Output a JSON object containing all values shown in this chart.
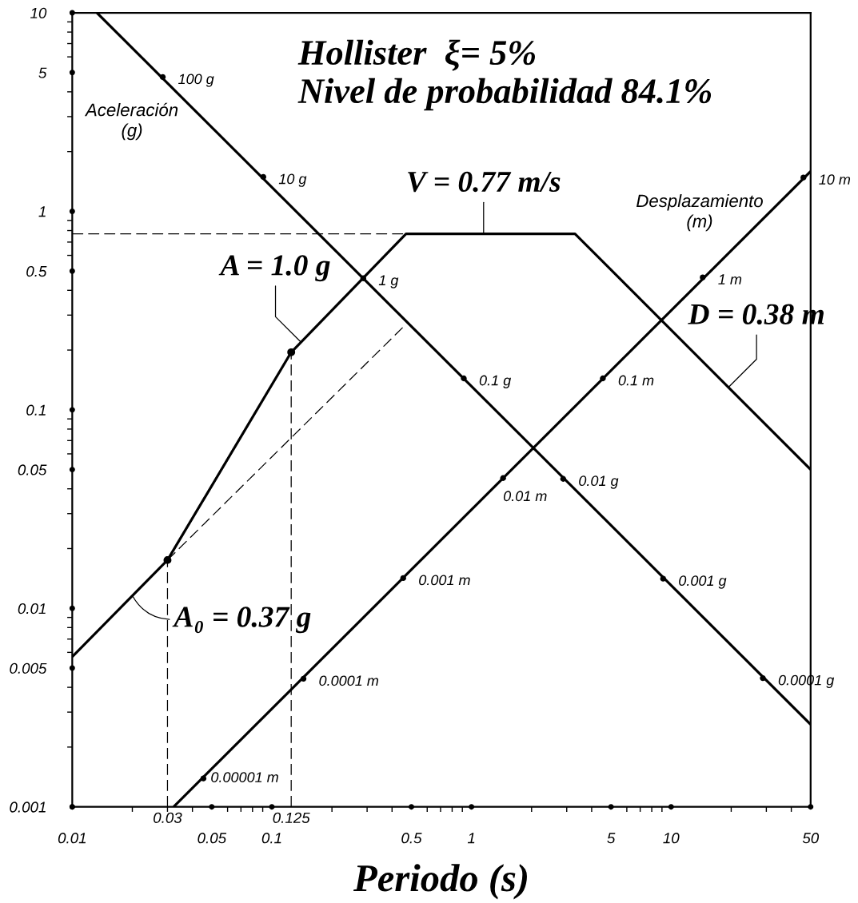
{
  "chart_data": {
    "type": "line",
    "title": "Hollister  ξ= 5%",
    "subtitle": "Nivel de probabilidad 84.1%",
    "xlabel": "Periodo (s)",
    "log": "xy",
    "xlim": [
      0.01,
      50
    ],
    "ylim": [
      0.001,
      10
    ],
    "xticks": [
      0.01,
      0.05,
      0.1,
      0.5,
      1,
      5,
      10,
      50
    ],
    "yticks": [
      0.001,
      0.005,
      0.01,
      0.05,
      0.1,
      0.5,
      1,
      5,
      10
    ],
    "series": [
      {
        "color": "#000000",
        "x": [
          0.01,
          0.03,
          0.125,
          0.47,
          3.3,
          50
        ],
        "values": [
          0.0057,
          0.0175,
          0.195,
          0.77,
          0.77,
          0.05
        ]
      },
      {
        "color": "#000000",
        "line_style": "dashed",
        "x": [
          0.01,
          0.47
        ],
        "values": [
          0.77,
          0.77
        ]
      },
      {
        "color": "#000000",
        "line_style": "dashed",
        "x": [
          0.03,
          0.47
        ],
        "values": [
          0.0175,
          0.27
        ]
      },
      {
        "color": "#000000",
        "line_style": "dashed",
        "x": [
          0.03,
          0.03
        ],
        "values": [
          0.001,
          0.0175
        ]
      },
      {
        "color": "#000000",
        "line_style": "dashed",
        "x": [
          0.125,
          0.125
        ],
        "values": [
          0.001,
          0.195
        ]
      },
      {
        "color": "#000000",
        "x": [
          0.0133,
          50
        ],
        "values": [
          10,
          0.0026
        ]
      },
      {
        "color": "#000000",
        "x": [
          0.0322,
          50
        ],
        "values": [
          0.001,
          1.59
        ]
      },
      {
        "type": "scatter",
        "color": "#000000",
        "marker": "circle",
        "x": [
          0.0284,
          0.0906,
          0.287,
          0.915,
          2.88,
          9.12,
          28.8
        ],
        "values": [
          4.75,
          1.49,
          0.46,
          0.144,
          0.0449,
          0.0141,
          0.00445
        ]
      },
      {
        "type": "scatter",
        "color": "#000000",
        "marker": "circle",
        "x": [
          46.0,
          14.4,
          4.55,
          1.44,
          0.455,
          0.144,
          0.0454
        ],
        "values": [
          1.48,
          0.465,
          0.144,
          0.0453,
          0.0142,
          0.00442,
          0.00139
        ]
      },
      {
        "type": "scatter",
        "color": "#000000",
        "marker": "circle",
        "x": [
          0.03,
          0.125
        ],
        "values": [
          0.0175,
          0.195
        ]
      }
    ],
    "annotations": [
      "Aceleración\n(g)",
      "Desplazamiento\n(m)",
      {
        "text": "100 g",
        "x": 0.0284,
        "y": 4.75
      },
      {
        "text": "10 g",
        "x": 0.0906,
        "y": 1.49
      },
      {
        "text": "1 g",
        "x": 0.287,
        "y": 0.46
      },
      {
        "text": "0.1 g",
        "x": 0.915,
        "y": 0.144
      },
      {
        "text": "0.01 g",
        "x": 2.88,
        "y": 0.0449
      },
      {
        "text": "0.001 g",
        "x": 9.12,
        "y": 0.0141
      },
      {
        "text": "0.0001 g",
        "x": 28.8,
        "y": 0.00445
      },
      {
        "text": "10 m",
        "x": 46.0,
        "y": 1.48
      },
      {
        "text": "1 m",
        "x": 14.4,
        "y": 0.465
      },
      {
        "text": "0.1 m",
        "x": 4.55,
        "y": 0.144
      },
      {
        "text": "0.01 m",
        "x": 1.44,
        "y": 0.0453
      },
      {
        "text": "0.001 m",
        "x": 0.455,
        "y": 0.0142
      },
      {
        "text": "0.0001 m",
        "x": 0.144,
        "y": 0.00442
      },
      {
        "text": "0.00001 m",
        "x": 0.0454,
        "y": 0.00139
      },
      {
        "text": "V = 0.77 m/s",
        "x": 1.15,
        "y": 0.77
      },
      {
        "text": "A = 1.0 g",
        "x": 0.14,
        "y": 0.219
      },
      {
        "text": "D = 0.38 m",
        "x": 19.4,
        "y": 0.13
      },
      {
        "text": "A₀ = 0.37 g",
        "x": 0.02,
        "y": 0.0116
      },
      {
        "text": "0.03",
        "x": 0.03,
        "y": 0.001
      },
      {
        "text": "0.125",
        "x": 0.125,
        "y": 0.001
      }
    ]
  }
}
